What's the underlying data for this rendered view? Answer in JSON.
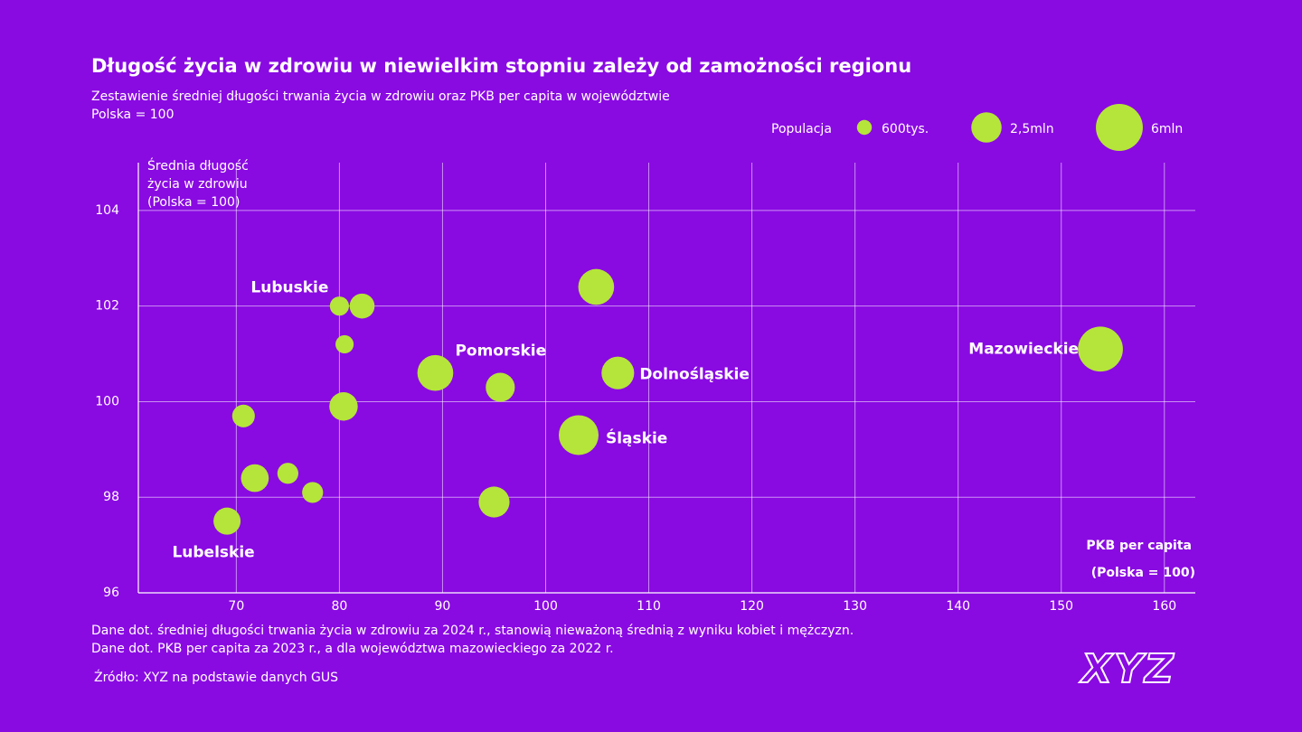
{
  "chart_data": {
    "type": "bubble",
    "title": "Długość życia w zdrowiu w niewielkim stopniu zależy od zamożności regionu",
    "subtitle": [
      "Zestawienie średniej długości trwania życia w zdrowiu oraz PKB per capita w województwie",
      "Polska = 100"
    ],
    "y_label": [
      "Średnia długość",
      "życia w zdrowiu",
      "(Polska = 100)"
    ],
    "x_label": [
      "PKB per capita",
      "(Polska = 100)"
    ],
    "x": [
      80.0,
      82.2,
      80.5,
      89.3,
      95.6,
      104.9,
      107.0,
      153.8,
      103.2,
      80.4,
      70.7,
      71.8,
      75.0,
      77.4,
      95.0,
      69.1
    ],
    "values": [
      102.0,
      102.0,
      101.2,
      100.6,
      100.3,
      102.4,
      100.6,
      101.1,
      99.3,
      99.9,
      99.7,
      98.4,
      98.5,
      98.1,
      97.9,
      97.5
    ],
    "sizes": [
      1.0,
      1.7,
      0.9,
      3.5,
      2.3,
      3.5,
      2.9,
      5.5,
      4.3,
      2.2,
      1.4,
      2.1,
      1.2,
      1.2,
      2.6,
      2.0
    ],
    "labels": [
      "Lubuskie",
      null,
      null,
      "Pomorskie",
      null,
      null,
      "Dolnośląskie",
      "Mazowieckie",
      "Śląskie",
      null,
      null,
      null,
      null,
      null,
      null,
      "Lubelskie"
    ],
    "color": "#b5e53a",
    "xlim": [
      60.5,
      163
    ],
    "ylim": [
      96,
      105
    ],
    "xticks": [
      70,
      80,
      90,
      100,
      110,
      120,
      130,
      140,
      150,
      160
    ],
    "yticks": [
      96,
      98,
      100,
      102,
      104
    ],
    "grid": true,
    "size_legend": {
      "title": "Populacja",
      "sizes": [
        0.6,
        2.5,
        6
      ],
      "value_labels": [
        "600tys.",
        "2,5mln",
        "6mln"
      ]
    },
    "notes": [
      "Dane dot. średniej długości trwania życia w zdrowiu za 2024 r., stanowią nieważoną średnią z wyniku kobiet i mężczyzn.",
      "Dane dot. PKB per capita za 2023 r., a dla województwa mazowieckiego za 2022 r."
    ],
    "source": "Źródło: XYZ na podstawie danych GUS",
    "logo": "XYZ"
  }
}
